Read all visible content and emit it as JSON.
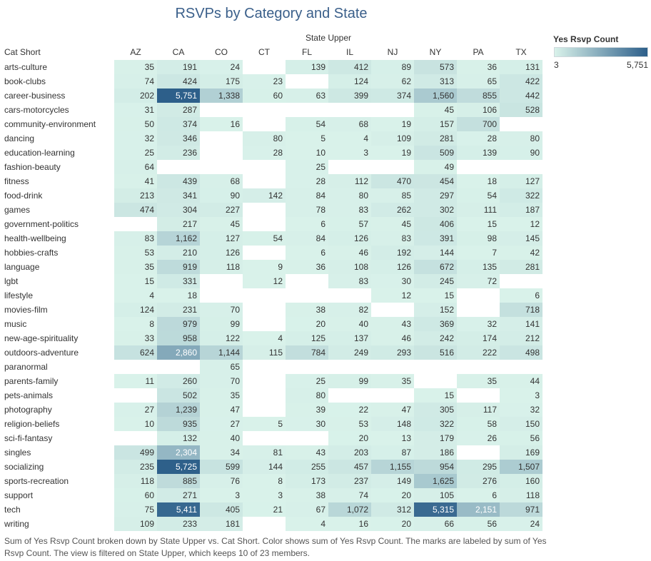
{
  "title": "RSVPs by Category and State",
  "col_group_label": "State Upper",
  "row_header_label": "Cat Short",
  "legend": {
    "title": "Yes Rsvp Count",
    "min_label": "3",
    "max_label": "5,751",
    "min_color": "#d9f2ea",
    "max_color": "#2d5f8a"
  },
  "caption": "Sum of Yes Rsvp Count broken down by State Upper vs. Cat Short.  Color shows sum of Yes Rsvp Count.  The marks are labeled by sum of Yes Rsvp Count. The view is filtered on State Upper, which keeps 10 of 23 members.",
  "chart_data": {
    "type": "heatmap",
    "title": "RSVPs by Category and State",
    "xlabel": "State Upper",
    "ylabel": "Cat Short",
    "columns": [
      "AZ",
      "CA",
      "CO",
      "CT",
      "FL",
      "IL",
      "NJ",
      "NY",
      "PA",
      "TX"
    ],
    "rows": [
      "arts-culture",
      "book-clubs",
      "career-business",
      "cars-motorcycles",
      "community-environment",
      "dancing",
      "education-learning",
      "fashion-beauty",
      "fitness",
      "food-drink",
      "games",
      "government-politics",
      "health-wellbeing",
      "hobbies-crafts",
      "language",
      "lgbt",
      "lifestyle",
      "movies-film",
      "music",
      "new-age-spirituality",
      "outdoors-adventure",
      "paranormal",
      "parents-family",
      "pets-animals",
      "photography",
      "religion-beliefs",
      "sci-fi-fantasy",
      "singles",
      "socializing",
      "sports-recreation",
      "support",
      "tech",
      "writing"
    ],
    "values": [
      [
        35,
        191,
        24,
        null,
        139,
        412,
        89,
        573,
        36,
        131
      ],
      [
        74,
        424,
        175,
        23,
        null,
        124,
        62,
        313,
        65,
        422
      ],
      [
        202,
        5751,
        1338,
        60,
        63,
        399,
        374,
        1560,
        855,
        442
      ],
      [
        31,
        287,
        null,
        null,
        null,
        null,
        null,
        45,
        106,
        528
      ],
      [
        50,
        374,
        16,
        null,
        54,
        68,
        19,
        157,
        700,
        null
      ],
      [
        32,
        346,
        null,
        80,
        5,
        4,
        109,
        281,
        28,
        80
      ],
      [
        25,
        236,
        null,
        28,
        10,
        3,
        19,
        509,
        139,
        90
      ],
      [
        64,
        null,
        null,
        null,
        25,
        null,
        null,
        49,
        null,
        null
      ],
      [
        41,
        439,
        68,
        null,
        28,
        112,
        470,
        454,
        18,
        127
      ],
      [
        213,
        341,
        90,
        142,
        84,
        80,
        85,
        297,
        54,
        322
      ],
      [
        474,
        304,
        227,
        null,
        78,
        83,
        262,
        302,
        111,
        187
      ],
      [
        null,
        217,
        45,
        null,
        6,
        57,
        45,
        406,
        15,
        12
      ],
      [
        83,
        1162,
        127,
        54,
        84,
        126,
        83,
        391,
        98,
        145
      ],
      [
        53,
        210,
        126,
        null,
        6,
        46,
        192,
        144,
        7,
        42
      ],
      [
        35,
        919,
        118,
        9,
        36,
        108,
        126,
        672,
        135,
        281
      ],
      [
        15,
        331,
        null,
        12,
        null,
        83,
        30,
        245,
        72,
        null
      ],
      [
        4,
        18,
        null,
        null,
        null,
        null,
        12,
        15,
        null,
        6
      ],
      [
        124,
        231,
        70,
        null,
        38,
        82,
        null,
        152,
        null,
        718
      ],
      [
        8,
        979,
        99,
        null,
        20,
        40,
        43,
        369,
        32,
        141
      ],
      [
        33,
        958,
        122,
        4,
        125,
        137,
        46,
        242,
        174,
        212
      ],
      [
        624,
        2860,
        1144,
        115,
        784,
        249,
        293,
        516,
        222,
        498
      ],
      [
        null,
        null,
        65,
        null,
        null,
        null,
        null,
        null,
        null,
        null
      ],
      [
        11,
        260,
        70,
        null,
        25,
        99,
        35,
        null,
        35,
        44
      ],
      [
        null,
        502,
        35,
        null,
        80,
        null,
        null,
        15,
        null,
        3
      ],
      [
        27,
        1239,
        47,
        null,
        39,
        22,
        47,
        305,
        117,
        32
      ],
      [
        10,
        935,
        27,
        5,
        30,
        53,
        148,
        322,
        58,
        150
      ],
      [
        null,
        132,
        40,
        null,
        null,
        20,
        13,
        179,
        26,
        56
      ],
      [
        499,
        2304,
        34,
        81,
        43,
        203,
        87,
        186,
        null,
        169
      ],
      [
        235,
        5725,
        599,
        144,
        255,
        457,
        1155,
        954,
        295,
        1507
      ],
      [
        118,
        885,
        76,
        8,
        173,
        237,
        149,
        1625,
        276,
        160
      ],
      [
        60,
        271,
        3,
        3,
        38,
        74,
        20,
        105,
        6,
        118
      ],
      [
        75,
        5411,
        405,
        21,
        67,
        1072,
        312,
        5315,
        2151,
        971
      ],
      [
        109,
        233,
        181,
        null,
        4,
        16,
        20,
        66,
        56,
        24
      ]
    ],
    "color_range": [
      3,
      5751
    ]
  }
}
